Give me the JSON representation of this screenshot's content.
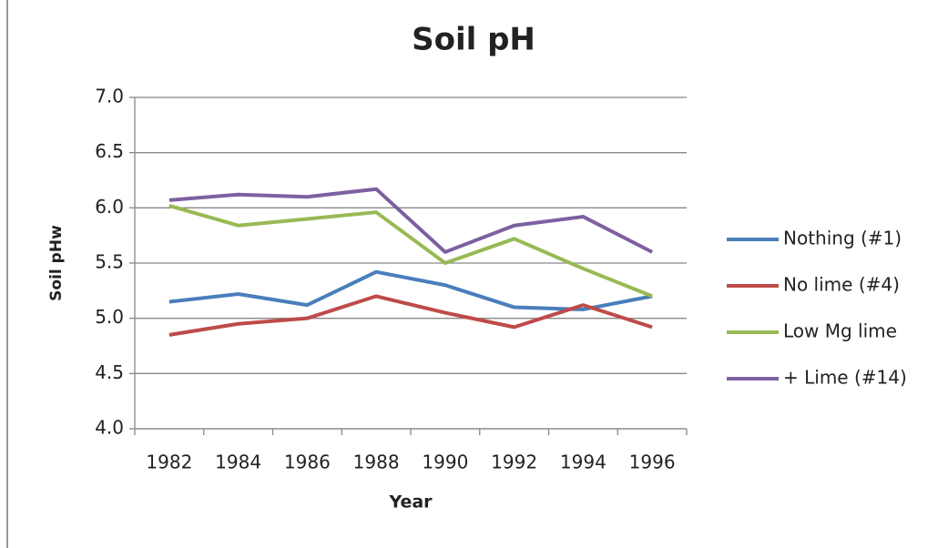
{
  "chart_data": {
    "type": "line",
    "title": "Soil pH",
    "x_label": "Year",
    "y_label": "Soil pHw",
    "categories": [
      "1982",
      "1984",
      "1986",
      "1988",
      "1990",
      "1992",
      "1994",
      "1996"
    ],
    "series": [
      {
        "name": "Nothing (#1)",
        "color": "#4a7ebb",
        "values": [
          5.15,
          5.22,
          5.12,
          5.42,
          5.3,
          5.1,
          5.08,
          5.2
        ]
      },
      {
        "name": "No lime (#4)",
        "color": "#be4b48",
        "values": [
          4.85,
          4.95,
          5.0,
          5.2,
          5.05,
          4.92,
          5.12,
          4.92
        ]
      },
      {
        "name": "Low Mg lime",
        "color": "#98b954",
        "values": [
          6.02,
          5.84,
          5.9,
          5.96,
          5.5,
          5.72,
          5.45,
          5.2
        ]
      },
      {
        "name": "+ Lime (#14)",
        "color": "#7d60a0",
        "values": [
          6.07,
          6.12,
          6.1,
          6.17,
          5.6,
          5.84,
          5.92,
          5.6
        ]
      }
    ],
    "ylim": [
      4,
      7
    ],
    "yticks": [
      {
        "value": 4,
        "label": "4.0"
      },
      {
        "value": 4.5,
        "label": "4.5"
      },
      {
        "value": 5,
        "label": "5.0"
      },
      {
        "value": 5.5,
        "label": "5.5"
      },
      {
        "value": 6,
        "label": "6.0"
      },
      {
        "value": 6.5,
        "label": "6.5"
      },
      {
        "value": 7,
        "label": "7.0"
      }
    ],
    "grid": true,
    "legend": "right"
  }
}
